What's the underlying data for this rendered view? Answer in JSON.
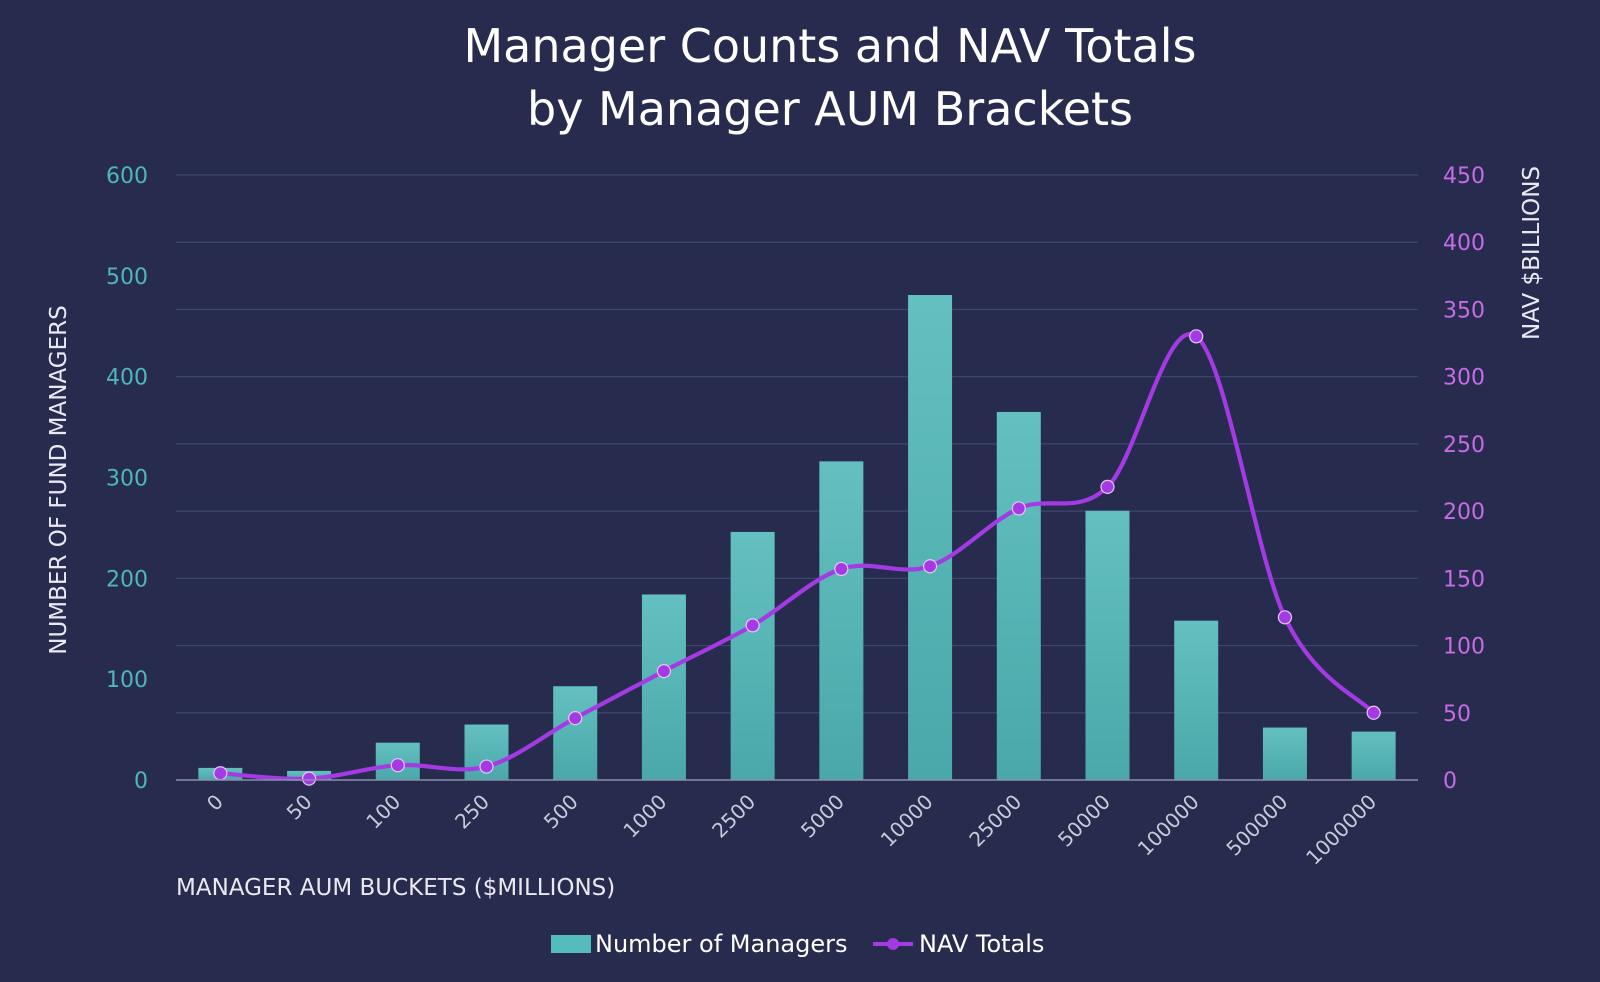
{
  "chart_data": {
    "type": "bar",
    "title_lines": [
      "Manager Counts and NAV Totals",
      "by Manager AUM Brackets"
    ],
    "xlabel": "MANAGER AUM BUCKETS ($MILLIONS)",
    "ylabel": "NUMBER OF FUND MANAGERS",
    "y2label": "NAV $BILLIONS",
    "categories": [
      "0",
      "50",
      "100",
      "250",
      "500",
      "1000",
      "2500",
      "5000",
      "10000",
      "25000",
      "50000",
      "100000",
      "500000",
      "1000000"
    ],
    "ylim": [
      0,
      600
    ],
    "y_ticks": [
      0,
      100,
      200,
      300,
      400,
      500,
      600
    ],
    "y2lim": [
      0,
      450
    ],
    "y2_ticks": [
      0,
      50,
      100,
      150,
      200,
      250,
      300,
      350,
      400,
      450
    ],
    "grid": true,
    "legend_position": "bottom",
    "series": [
      {
        "name": "Number of Managers",
        "type": "bar",
        "axis": "left",
        "color": "#55bcbc",
        "values": [
          12,
          9,
          37,
          55,
          93,
          184,
          246,
          316,
          481,
          365,
          267,
          158,
          52,
          48
        ]
      },
      {
        "name": "NAV Totals",
        "type": "line",
        "axis": "right",
        "smooth": true,
        "color": "#a43ae3",
        "values": [
          5,
          1,
          11,
          10,
          46,
          81,
          115,
          157,
          159,
          202,
          218,
          330,
          121,
          50
        ]
      }
    ]
  }
}
